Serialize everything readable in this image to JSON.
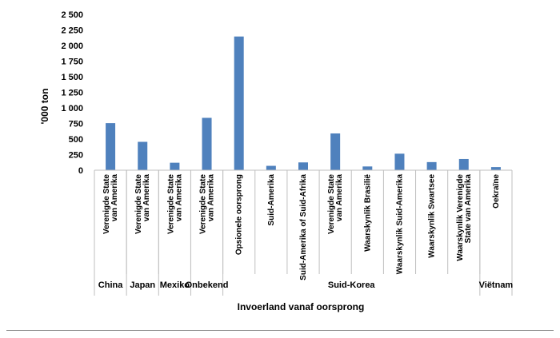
{
  "chart_data": {
    "type": "bar",
    "title": "",
    "ylabel": "'000 ton",
    "xlabel": "Invoerland vanaf oorsprong",
    "ylim": [
      0,
      2500
    ],
    "yticks": [
      "0",
      "250",
      "500",
      "750",
      "1 000",
      "1 250",
      "1 500",
      "1 750",
      "2 000",
      "2 250",
      "2 500"
    ],
    "grid": false,
    "legend": "none",
    "bar_color": "#4f81bd",
    "groups": [
      {
        "name": "China",
        "span": 1
      },
      {
        "name": "Japan",
        "span": 1
      },
      {
        "name": "Mexiko",
        "span": 1
      },
      {
        "name": "Onbekend",
        "span": 1
      },
      {
        "name": "Suid-Korea",
        "span": 8
      },
      {
        "name": "Viëtnam",
        "span": 1
      }
    ],
    "categories": [
      [
        "Verenigde State",
        "van Amerika"
      ],
      [
        "Verenigde State",
        "van Amerika"
      ],
      [
        "Verenigde State",
        "van Amerika"
      ],
      [
        "Verenigde State",
        "van Amerika"
      ],
      [
        "Opsionele oorsprong"
      ],
      [
        "Suid-Amerika"
      ],
      [
        "Suid-Amerika of Suid-Afrika"
      ],
      [
        "Verenigde State",
        "van Amerika"
      ],
      [
        "Waarskynlik Brasilië"
      ],
      [
        "Waarskynlik Suid-Amerika"
      ],
      [
        "Waarskynlik Swartsee"
      ],
      [
        "Waarskynlik Verenigde",
        "State van Amerika"
      ],
      [
        "Oekraïne"
      ]
    ],
    "values": [
      755,
      455,
      120,
      840,
      2145,
      70,
      125,
      590,
      60,
      265,
      130,
      180,
      50
    ]
  }
}
